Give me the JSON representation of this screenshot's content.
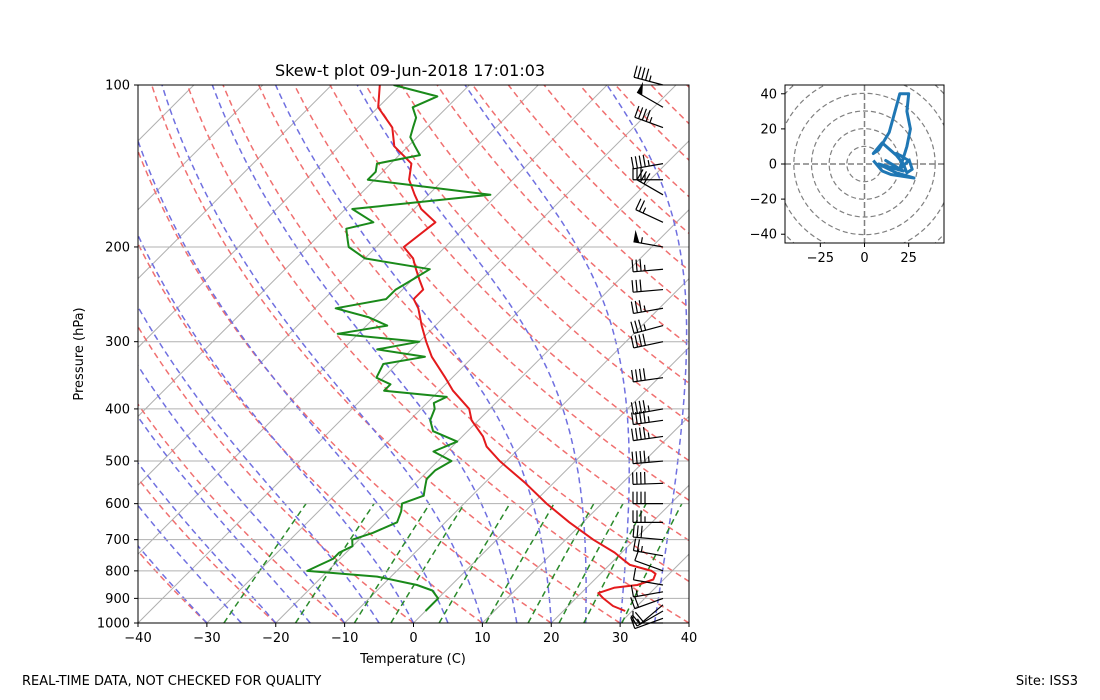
{
  "footer": {
    "left": "REAL-TIME DATA, NOT CHECKED FOR QUALITY",
    "right": "Site: ISS3"
  },
  "chart_data": [
    {
      "type": "line",
      "subtype": "skew-t",
      "title": "Skew-t plot 09-Jun-2018 17:01:03",
      "xlabel": "Temperature (C)",
      "ylabel": "Pressure (hPa)",
      "xlim": [
        -40,
        40
      ],
      "ylim": [
        1000,
        100
      ],
      "yscale": "log",
      "xticks": [
        -40,
        -30,
        -20,
        -10,
        0,
        10,
        20,
        30,
        40
      ],
      "yticks": [
        100,
        200,
        300,
        400,
        500,
        600,
        700,
        800,
        900,
        1000
      ],
      "grid": true,
      "series": [
        {
          "role": "temperature",
          "color": "#e41a1c",
          "p": [
            950,
            930,
            900,
            880,
            860,
            850,
            830,
            810,
            800,
            780,
            760,
            740,
            700,
            650,
            600,
            550,
            500,
            470,
            450,
            420,
            400,
            370,
            350,
            320,
            300,
            280,
            260,
            250,
            240,
            230,
            220,
            210,
            200,
            180,
            170,
            160,
            150,
            140,
            130,
            120,
            110,
            100
          ],
          "t": [
            29,
            26.5,
            24,
            22.5,
            24,
            27,
            28.5,
            28,
            27,
            23,
            21,
            19,
            14,
            8,
            2,
            -4,
            -11,
            -15,
            -17,
            -21,
            -23,
            -28,
            -31,
            -36,
            -39,
            -42,
            -45,
            -47,
            -47,
            -49,
            -51,
            -53,
            -56,
            -55,
            -59,
            -62,
            -65,
            -67,
            -72,
            -75,
            -80,
            -83
          ]
        },
        {
          "role": "dewpoint",
          "color": "#1a8a1a",
          "p": [
            950,
            900,
            870,
            850,
            820,
            800,
            780,
            760,
            740,
            720,
            700,
            680,
            650,
            620,
            600,
            580,
            560,
            540,
            520,
            500,
            480,
            460,
            440,
            420,
            400,
            390,
            380,
            370,
            360,
            350,
            330,
            320,
            310,
            300,
            290,
            280,
            270,
            260,
            250,
            240,
            230,
            220,
            210,
            200,
            195,
            190,
            185,
            180,
            170,
            160,
            150,
            145,
            140,
            135,
            130,
            125,
            120,
            115,
            110,
            105,
            100
          ],
          "t": [
            0,
            0,
            -2,
            -5,
            -12,
            -23,
            -22,
            -21,
            -21,
            -20,
            -21,
            -19,
            -17,
            -18,
            -19,
            -17,
            -18,
            -19,
            -19,
            -18,
            -22,
            -20,
            -25,
            -27,
            -28,
            -29,
            -28,
            -38,
            -38,
            -41,
            -42,
            -37,
            -45,
            -40,
            -53,
            -47,
            -51,
            -57,
            -51,
            -51,
            -50,
            -49,
            -60,
            -64,
            -65,
            -66,
            -67,
            -64,
            -69,
            -51,
            -71,
            -71,
            -72,
            -67,
            -69,
            -71,
            -72,
            -73,
            -75,
            -73,
            -81
          ]
        }
      ],
      "reference_lines": {
        "dry_adiabats_color": "#f07070",
        "moist_adiabats_color": "#7070e0",
        "mixing_ratio_color": "#2a8a2a",
        "isotherm_color": "#b0b0b0"
      },
      "wind_barbs": {
        "color": "#000000",
        "p": [
          1000,
          980,
          950,
          925,
          900,
          875,
          850,
          800,
          750,
          700,
          650,
          600,
          550,
          500,
          450,
          420,
          400,
          350,
          300,
          280,
          260,
          240,
          220,
          200,
          180,
          160,
          150,
          140,
          120,
          110,
          100
        ],
        "speed_kt": [
          10,
          10,
          15,
          20,
          20,
          15,
          10,
          10,
          25,
          30,
          35,
          40,
          40,
          45,
          45,
          45,
          45,
          40,
          40,
          35,
          35,
          30,
          35,
          55,
          25,
          30,
          35,
          45,
          45,
          50,
          45
        ],
        "dir_deg": [
          270,
          250,
          240,
          230,
          250,
          260,
          280,
          290,
          280,
          275,
          270,
          270,
          268,
          265,
          262,
          262,
          260,
          262,
          258,
          255,
          260,
          265,
          265,
          280,
          295,
          300,
          270,
          260,
          290,
          300,
          285
        ]
      }
    },
    {
      "type": "line",
      "subtype": "hodograph",
      "xlim": [
        -45,
        45
      ],
      "ylim": [
        -45,
        45
      ],
      "xticks": [
        -25,
        0,
        25
      ],
      "yticks": [
        -40,
        -20,
        0,
        20,
        40
      ],
      "ring_step": 10,
      "series": [
        {
          "color": "#1f77b4",
          "u": [
            5,
            10,
            15,
            28,
            18,
            8,
            22,
            12,
            20,
            22,
            18,
            25,
            20,
            24,
            26,
            24,
            25,
            20,
            14,
            8,
            5,
            10,
            18,
            22,
            24,
            27,
            25
          ],
          "v": [
            2,
            -4,
            -6,
            -8,
            -5,
            0,
            -4,
            2,
            -3,
            4,
            6,
            2,
            -3,
            10,
            20,
            30,
            40,
            40,
            18,
            8,
            6,
            12,
            5,
            0,
            -5,
            -3,
            3
          ]
        }
      ]
    }
  ]
}
